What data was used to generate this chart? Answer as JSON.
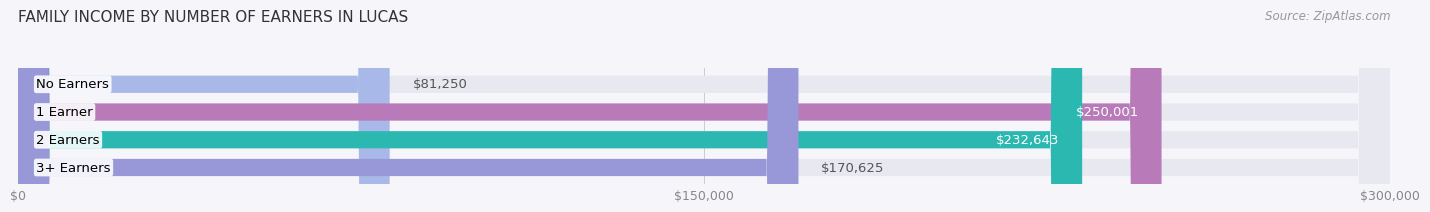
{
  "title": "FAMILY INCOME BY NUMBER OF EARNERS IN LUCAS",
  "source": "Source: ZipAtlas.com",
  "categories": [
    "No Earners",
    "1 Earner",
    "2 Earners",
    "3+ Earners"
  ],
  "values": [
    81250,
    250001,
    232643,
    170625
  ],
  "bar_colors": [
    "#a8b8e8",
    "#b87ab8",
    "#2ab8b0",
    "#9898d8"
  ],
  "bar_bg_color": "#e8e8f0",
  "value_labels": [
    "$81,250",
    "$250,001",
    "$232,643",
    "$170,625"
  ],
  "xlim": [
    0,
    300000
  ],
  "xticks": [
    0,
    150000,
    300000
  ],
  "xtick_labels": [
    "$0",
    "$150,000",
    "$300,000"
  ],
  "background_color": "#f5f5fa",
  "bar_height": 0.62,
  "title_fontsize": 11,
  "label_fontsize": 9.5,
  "value_fontsize": 9.5,
  "axis_fontsize": 9
}
